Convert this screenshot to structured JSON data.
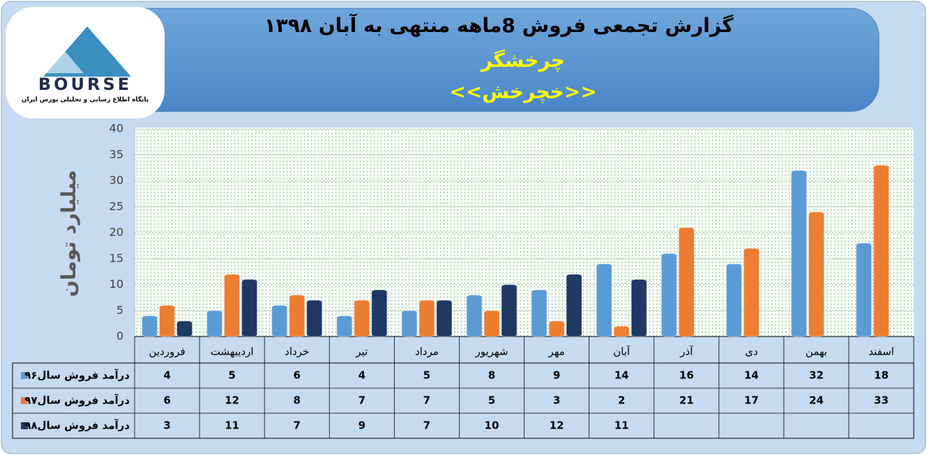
{
  "logo": {
    "text": "BOURSE",
    "tagline": "پایگاه اطلاع رسانی و تحلیلی بورس ایران"
  },
  "chart_data": {
    "type": "bar",
    "title": "گزارش تجمعی فروش  8ماهه منتهی به آبان ۱۳۹۸",
    "subtitle": "چرخشگر",
    "subtitle2": "<<خچرخش>>",
    "y_label": "میلیارد تومان",
    "categories": [
      "فروردین",
      "اردیبهشت",
      "خرداد",
      "تیر",
      "مرداد",
      "شهریور",
      "مهر",
      "آبان",
      "آذر",
      "دی",
      "بهمن",
      "اسفند"
    ],
    "series": [
      {
        "name": "درآمد فروش سال۹۶",
        "color": "#5b9bd5",
        "values": [
          4,
          5,
          6,
          4,
          5,
          8,
          9,
          14,
          16,
          14,
          32,
          18
        ]
      },
      {
        "name": "درآمد فروش سال۹۷",
        "color": "#ed7d31",
        "values": [
          6,
          12,
          8,
          7,
          7,
          5,
          3,
          2,
          21,
          17,
          24,
          33
        ]
      },
      {
        "name": "درآمد فروش سال۹۸",
        "color": "#1f3864",
        "values": [
          3,
          11,
          7,
          9,
          7,
          10,
          12,
          11,
          null,
          null,
          null,
          null
        ]
      }
    ],
    "ylim": [
      0,
      40
    ],
    "yticks": [
      0,
      5,
      10,
      15,
      20,
      25,
      30,
      35,
      40
    ],
    "grid": true,
    "data_table": true
  }
}
